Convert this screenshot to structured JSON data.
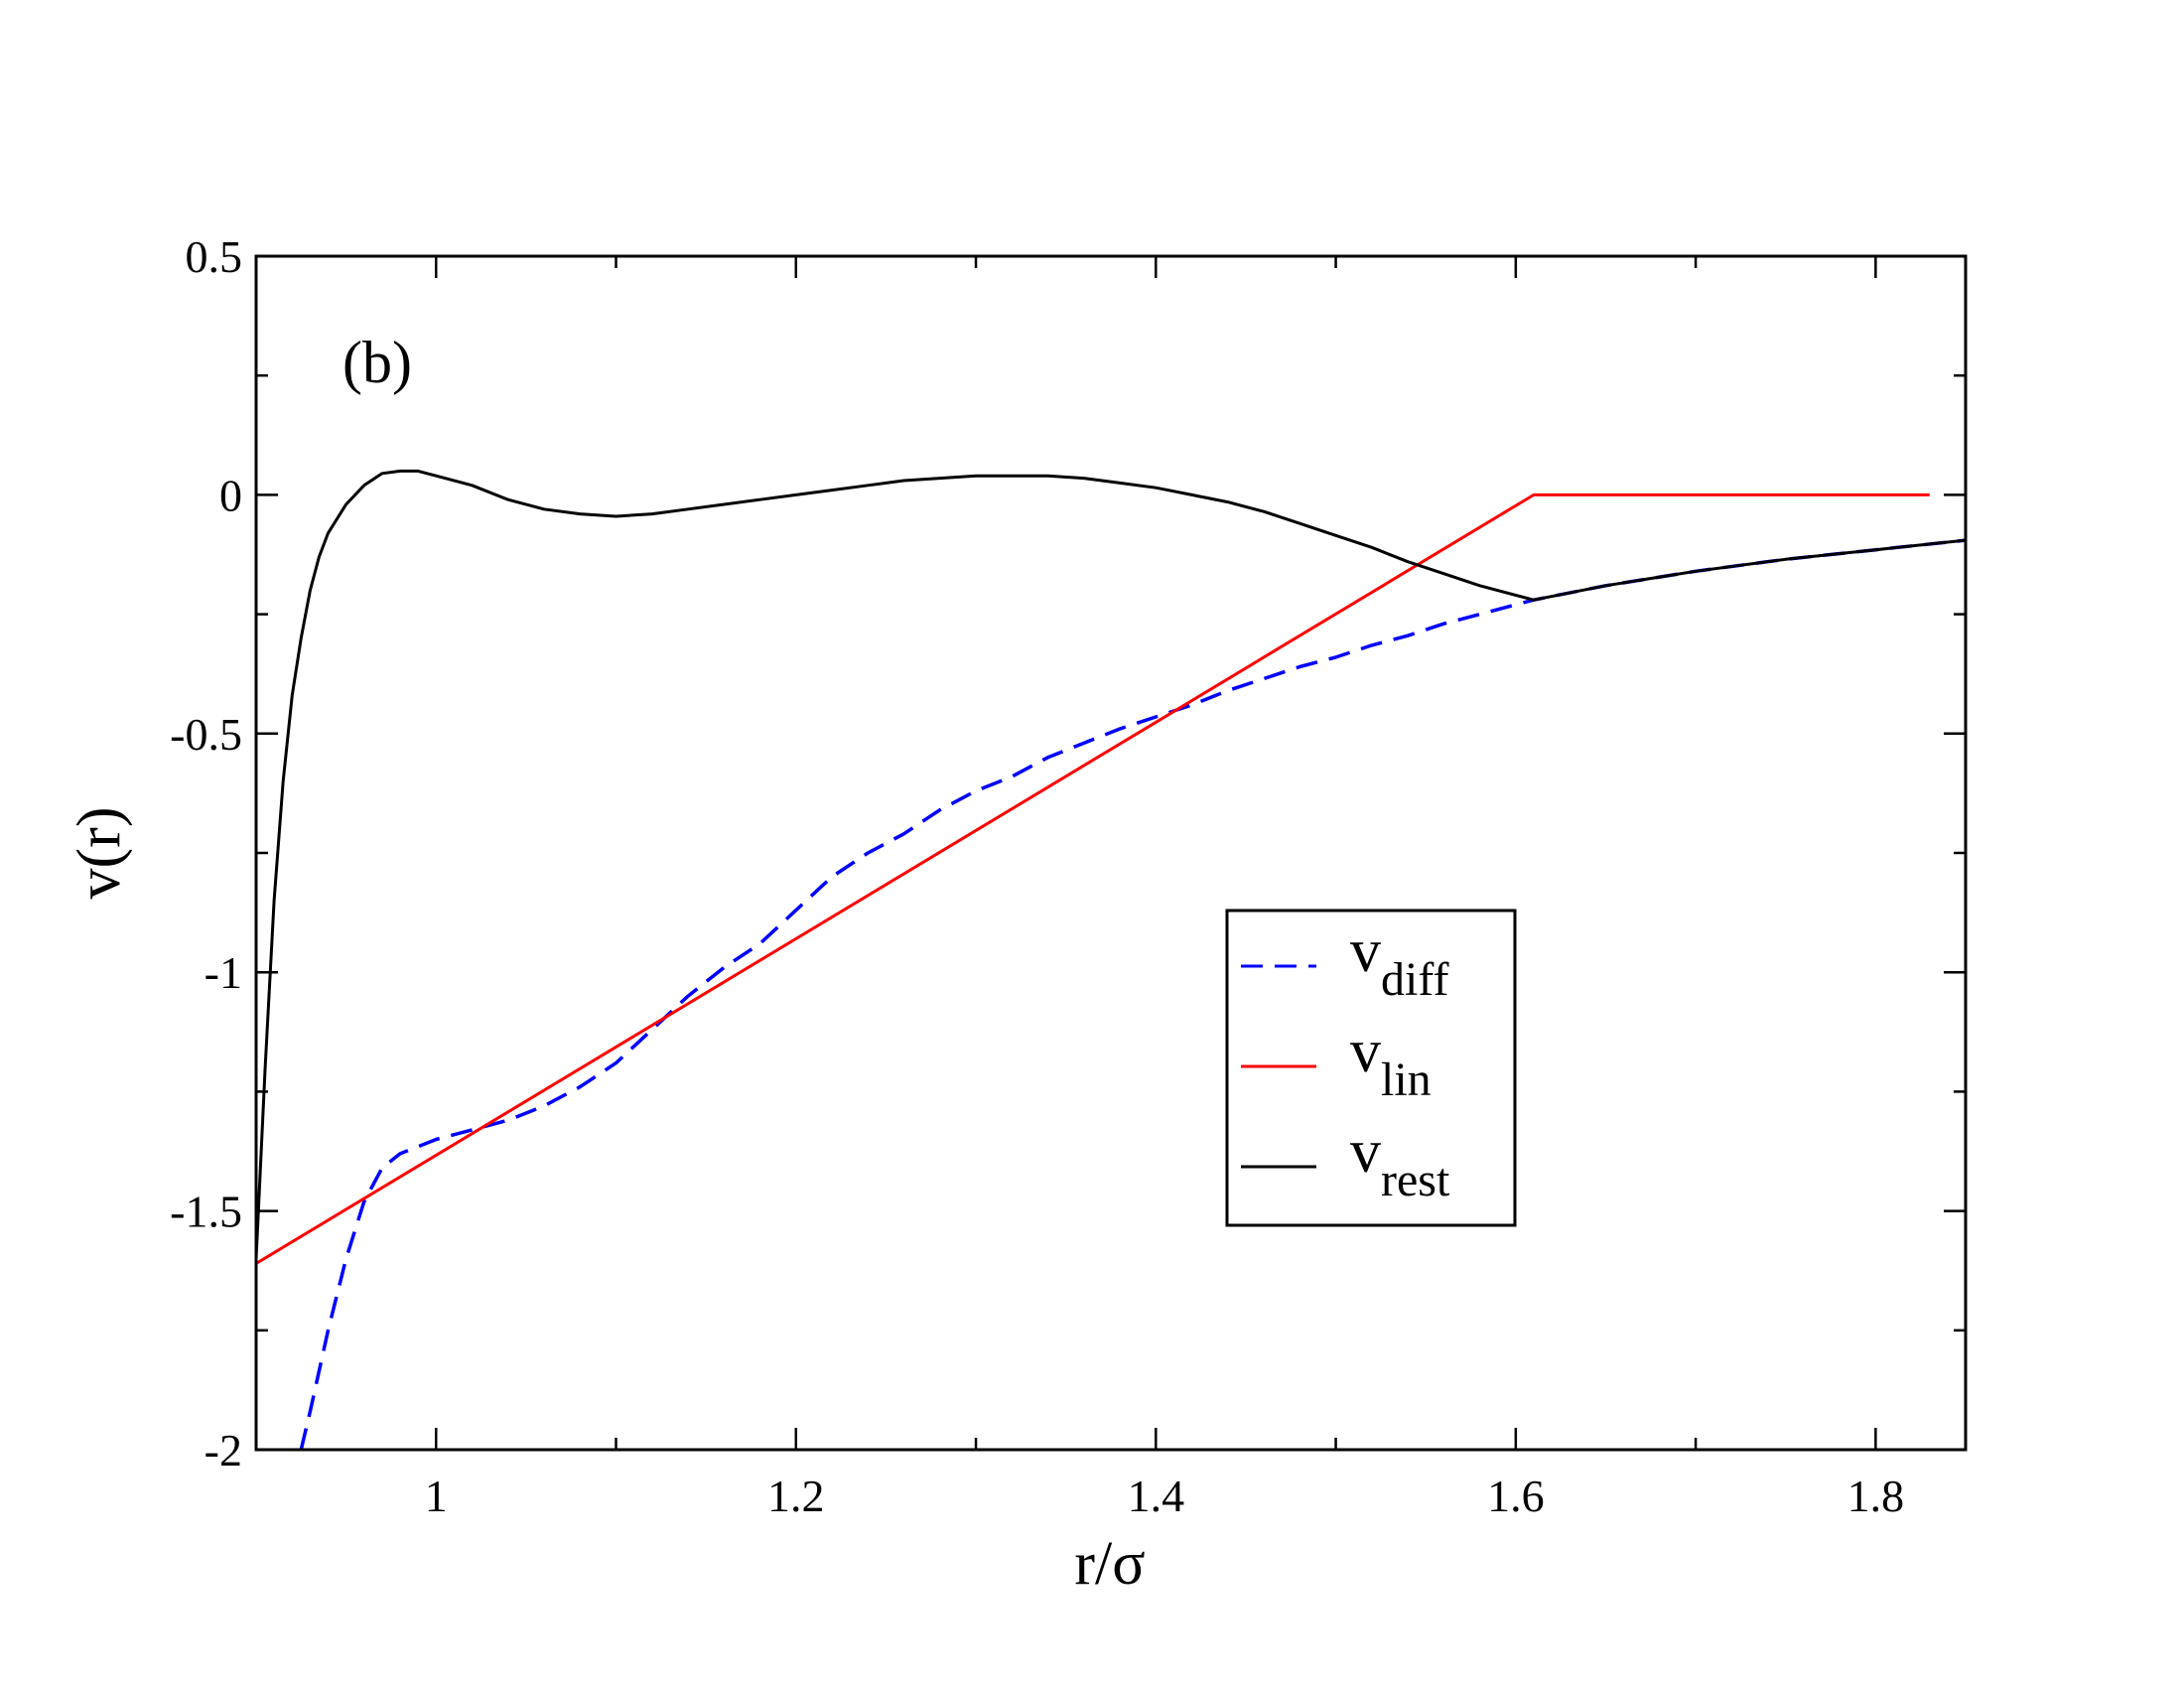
{
  "chart_data": {
    "type": "line",
    "panel_label": "(b)",
    "xlabel": "r/σ",
    "ylabel": "v(r)",
    "xlim": [
      0.9,
      1.85
    ],
    "ylim": [
      -2,
      0.5
    ],
    "x_ticks": [
      {
        "value": 1.0,
        "label": "1"
      },
      {
        "value": 1.2,
        "label": "1.2"
      },
      {
        "value": 1.4,
        "label": "1.4"
      },
      {
        "value": 1.6,
        "label": "1.6"
      },
      {
        "value": 1.8,
        "label": "1.8"
      }
    ],
    "x_minor_ticks": [
      0.9,
      1.1,
      1.3,
      1.5,
      1.7
    ],
    "y_ticks": [
      {
        "value": 0.5,
        "label": "0.5"
      },
      {
        "value": 0.0,
        "label": "0"
      },
      {
        "value": -0.5,
        "label": "-0.5"
      },
      {
        "value": -1.0,
        "label": "-1"
      },
      {
        "value": -1.5,
        "label": "-1.5"
      },
      {
        "value": -2.0,
        "label": "-2"
      }
    ],
    "y_minor_ticks": [
      0.25,
      -0.25,
      -0.75,
      -1.25,
      -1.75
    ],
    "legend_position": "center-right",
    "series": [
      {
        "name": "v_diff",
        "label_main": "v",
        "label_sub": "diff",
        "color": "#0000ff",
        "style": "dashed",
        "x": [
          0.925,
          0.93,
          0.94,
          0.95,
          0.96,
          0.97,
          0.98,
          1.0,
          1.02,
          1.04,
          1.06,
          1.08,
          1.1,
          1.12,
          1.14,
          1.16,
          1.18,
          1.2,
          1.22,
          1.24,
          1.26,
          1.28,
          1.3,
          1.32,
          1.34,
          1.36,
          1.38,
          1.4,
          1.42,
          1.44,
          1.46,
          1.48,
          1.5,
          1.52,
          1.54,
          1.56,
          1.58,
          1.61,
          1.65,
          1.7,
          1.75,
          1.8,
          1.85
        ],
        "y": [
          -2.0,
          -1.92,
          -1.75,
          -1.6,
          -1.48,
          -1.41,
          -1.38,
          -1.35,
          -1.33,
          -1.31,
          -1.28,
          -1.24,
          -1.19,
          -1.12,
          -1.05,
          -0.99,
          -0.94,
          -0.87,
          -0.8,
          -0.75,
          -0.71,
          -0.66,
          -0.62,
          -0.59,
          -0.55,
          -0.52,
          -0.49,
          -0.465,
          -0.44,
          -0.41,
          -0.385,
          -0.36,
          -0.34,
          -0.315,
          -0.295,
          -0.27,
          -0.25,
          -0.22,
          -0.19,
          -0.16,
          -0.135,
          -0.115,
          -0.095
        ]
      },
      {
        "name": "v_lin",
        "label_main": "v",
        "label_sub": "lin",
        "color": "#ff0000",
        "style": "solid",
        "x": [
          0.9,
          1.61,
          1.83
        ],
        "y": [
          -1.61,
          0.0,
          0.0
        ]
      },
      {
        "name": "v_rest",
        "label_main": "v",
        "label_sub": "rest",
        "color": "#000000",
        "style": "solid",
        "x": [
          0.9,
          0.905,
          0.91,
          0.915,
          0.92,
          0.925,
          0.93,
          0.935,
          0.94,
          0.95,
          0.96,
          0.97,
          0.98,
          0.99,
          1.0,
          1.02,
          1.04,
          1.06,
          1.08,
          1.1,
          1.12,
          1.14,
          1.16,
          1.18,
          1.2,
          1.22,
          1.24,
          1.26,
          1.28,
          1.3,
          1.32,
          1.34,
          1.36,
          1.38,
          1.4,
          1.42,
          1.44,
          1.46,
          1.48,
          1.5,
          1.52,
          1.54,
          1.56,
          1.58,
          1.61,
          1.65,
          1.7,
          1.75,
          1.8,
          1.85
        ],
        "y": [
          -1.6,
          -1.2,
          -0.85,
          -0.6,
          -0.42,
          -0.3,
          -0.2,
          -0.13,
          -0.08,
          -0.02,
          0.02,
          0.045,
          0.05,
          0.05,
          0.04,
          0.02,
          -0.01,
          -0.03,
          -0.04,
          -0.045,
          -0.04,
          -0.03,
          -0.02,
          -0.01,
          0.0,
          0.01,
          0.02,
          0.03,
          0.035,
          0.04,
          0.04,
          0.04,
          0.035,
          0.025,
          0.015,
          0.0,
          -0.015,
          -0.035,
          -0.06,
          -0.085,
          -0.11,
          -0.14,
          -0.165,
          -0.19,
          -0.22,
          -0.19,
          -0.16,
          -0.135,
          -0.115,
          -0.095
        ]
      }
    ]
  }
}
